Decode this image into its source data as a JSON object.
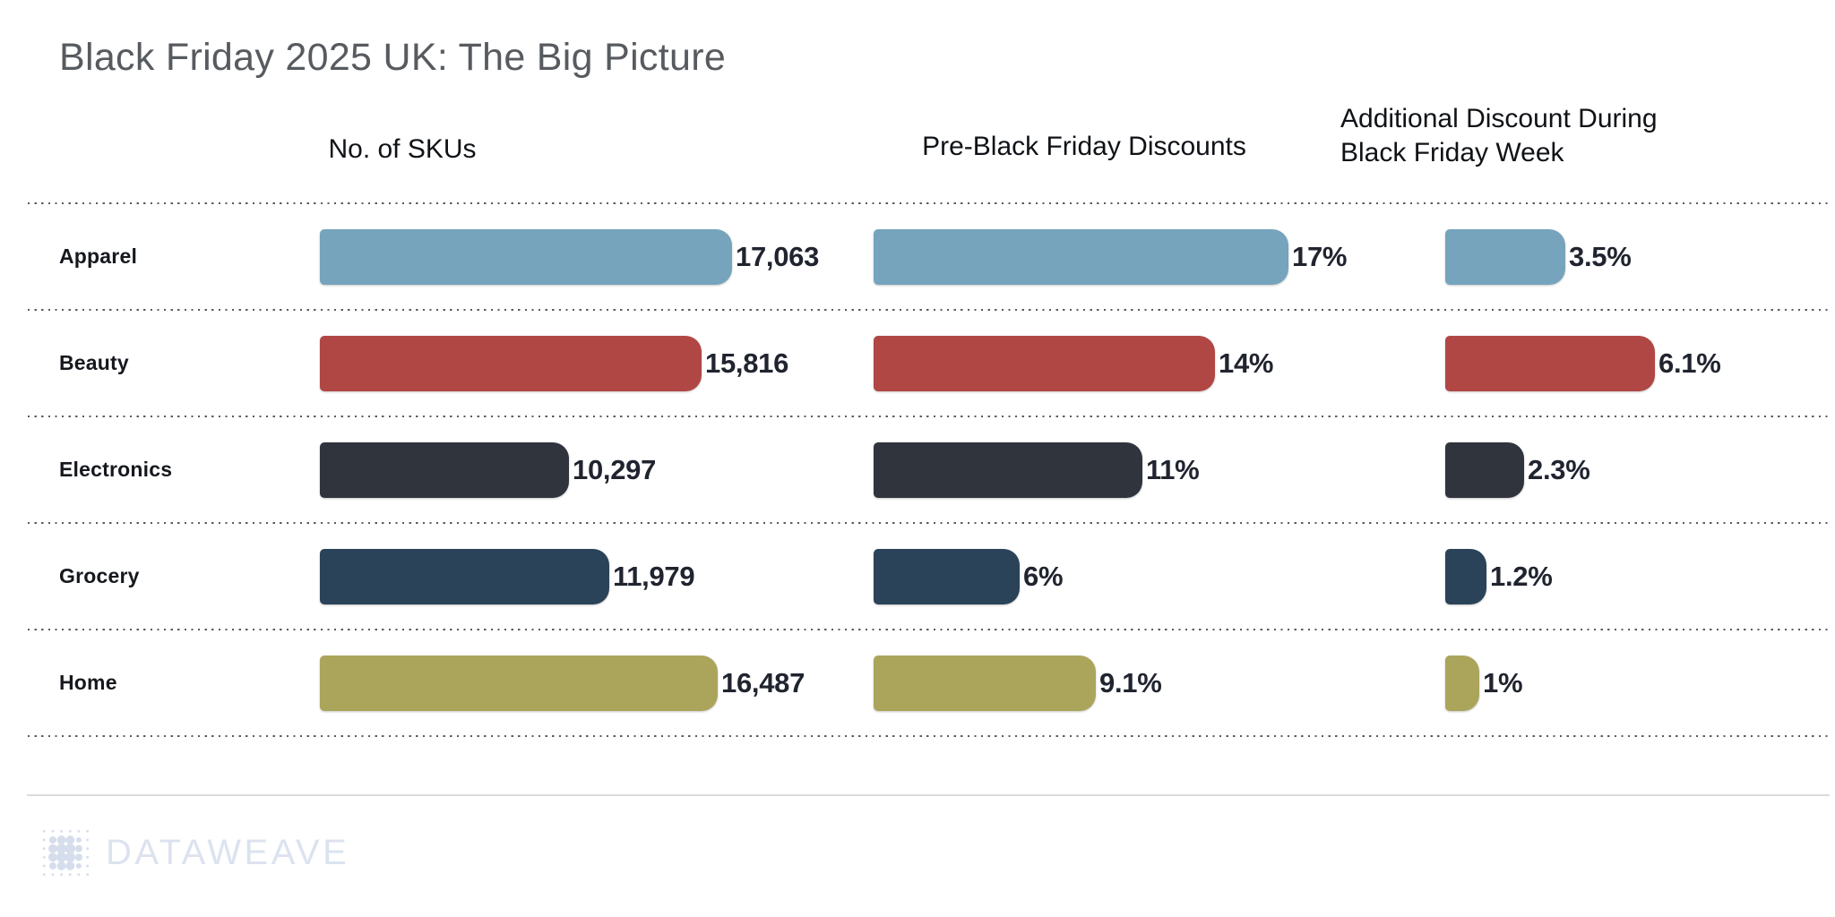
{
  "title": "Black Friday 2025 UK: The Big Picture",
  "chart_data": {
    "type": "bar",
    "orientation": "horizontal",
    "title": "Black Friday 2025 UK: The Big Picture",
    "categories": [
      "Apparel",
      "Beauty",
      "Electronics",
      "Grocery",
      "Home"
    ],
    "category_colors": [
      "#76a4bd",
      "#b04744",
      "#30343d",
      "#2b4358",
      "#aba55c"
    ],
    "grid": "dotted-horizontal-row-separators",
    "legend": "none",
    "value_labels": "outside-end",
    "panels": [
      {
        "header": "No. of SKUs",
        "max": 17063,
        "values": [
          17063,
          15816,
          10297,
          11979,
          16487
        ],
        "labels": [
          "17,063",
          "15,816",
          "10,297",
          "11,979",
          "16,487"
        ]
      },
      {
        "header": "Pre-Black Friday Discounts",
        "max": 17,
        "values": [
          17,
          14,
          11,
          6,
          9.1
        ],
        "labels": [
          "17%",
          "14%",
          "11%",
          "6%",
          "9.1%"
        ]
      },
      {
        "header": "Additional Discount During Black Friday Week",
        "max": 6.1,
        "values": [
          3.5,
          6.1,
          2.3,
          1.2,
          1
        ],
        "labels": [
          "3.5%",
          "6.1%",
          "2.3%",
          "1.2%",
          "1%"
        ]
      }
    ]
  },
  "footer": {
    "brand": "DATAWEAVE",
    "logo_icon": "dot-grid-icon",
    "brand_color": "#dce3ef"
  }
}
